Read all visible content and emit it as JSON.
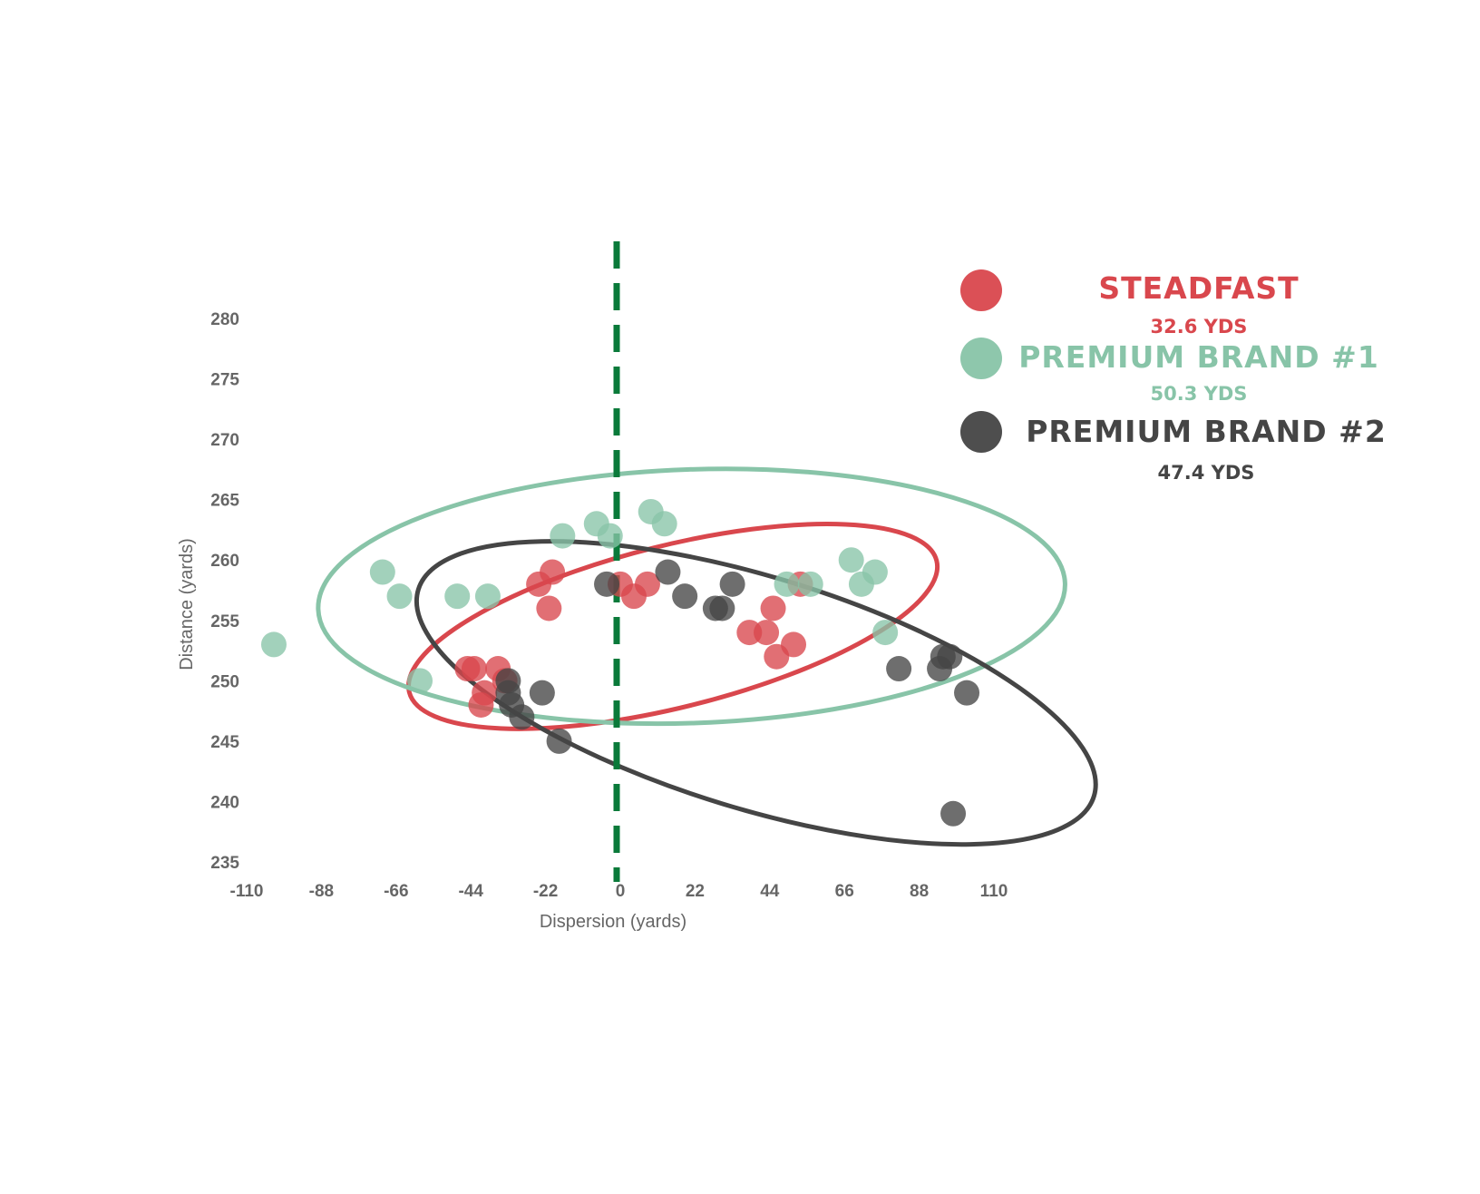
{
  "chart_data": {
    "type": "scatter",
    "title": "",
    "xlabel": "Dispersion (yards)",
    "ylabel": "Distance (yards)",
    "xlim": [
      -110,
      110
    ],
    "ylim": [
      235,
      280
    ],
    "xticks": [
      "-110",
      "-88",
      "-66",
      "-44",
      "-22",
      "0",
      "22",
      "44",
      "66",
      "88",
      "110"
    ],
    "yticks": [
      "280",
      "275",
      "270",
      "265",
      "260",
      "255",
      "250",
      "245",
      "240",
      "235"
    ],
    "grid": false,
    "legend_position": "top-right",
    "center_line": {
      "x": 0,
      "style": "dashed",
      "color": "#0a7a3a"
    },
    "series": [
      {
        "name": "STEADFAST",
        "summary": "32.6 YDS",
        "color": "#d9474d",
        "points": [
          [
            -45,
            251
          ],
          [
            -43,
            251
          ],
          [
            -41,
            248
          ],
          [
            -40,
            249
          ],
          [
            -36,
            251
          ],
          [
            -34,
            250
          ],
          [
            -24,
            258
          ],
          [
            -20,
            259
          ],
          [
            -21,
            256
          ],
          [
            0,
            258
          ],
          [
            4,
            257
          ],
          [
            8,
            258
          ],
          [
            38,
            254
          ],
          [
            43,
            254
          ],
          [
            45,
            256
          ],
          [
            46,
            252
          ],
          [
            51,
            253
          ],
          [
            53,
            258
          ]
        ],
        "ellipse": {
          "cx": 15.5,
          "cy": 254.5,
          "rx": 80,
          "ry": 6.7,
          "angle_deg": -14
        }
      },
      {
        "name": "PREMIUM BRAND #1",
        "summary": "50.3 YDS",
        "color": "#88c4a8",
        "points": [
          [
            -102,
            253
          ],
          [
            -70,
            259
          ],
          [
            -65,
            257
          ],
          [
            -59,
            250
          ],
          [
            -48,
            257
          ],
          [
            -39,
            257
          ],
          [
            -17,
            262
          ],
          [
            -7,
            263
          ],
          [
            -3,
            262
          ],
          [
            9,
            264
          ],
          [
            13,
            263
          ],
          [
            49,
            258
          ],
          [
            56,
            258
          ],
          [
            68,
            260
          ],
          [
            71,
            258
          ],
          [
            75,
            259
          ],
          [
            78,
            254
          ]
        ],
        "ellipse": {
          "cx": 21,
          "cy": 257,
          "rx": 110,
          "ry": 10.5,
          "angle_deg": -2
        }
      },
      {
        "name": "PREMIUM BRAND #2",
        "summary": "47.4 YDS",
        "color": "#454545",
        "points": [
          [
            -33,
            250
          ],
          [
            -33,
            249
          ],
          [
            -32,
            248
          ],
          [
            -29,
            247
          ],
          [
            -23,
            249
          ],
          [
            -18,
            245
          ],
          [
            -4,
            258
          ],
          [
            14,
            259
          ],
          [
            19,
            257
          ],
          [
            28,
            256
          ],
          [
            30,
            256
          ],
          [
            33,
            258
          ],
          [
            82,
            251
          ],
          [
            94,
            251
          ],
          [
            95,
            252
          ],
          [
            97,
            252
          ],
          [
            98,
            239
          ],
          [
            102,
            249
          ]
        ],
        "ellipse": {
          "cx": 40,
          "cy": 249,
          "rx": 104,
          "ry": 9.6,
          "angle_deg": 17
        }
      }
    ]
  }
}
